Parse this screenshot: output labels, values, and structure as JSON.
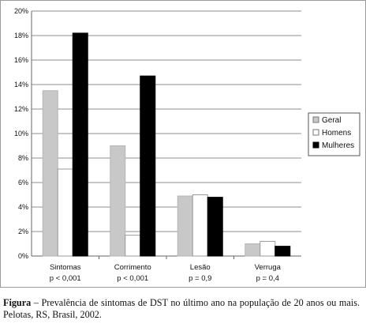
{
  "chart_data": {
    "type": "bar",
    "categories": [
      "Sintomas",
      "Corrimento",
      "Lesão",
      "Verruga"
    ],
    "subcategories": [
      "p < 0,001",
      "p < 0,001",
      "p = 0,9",
      "p = 0,4"
    ],
    "series": [
      {
        "name": "Geral",
        "values": [
          13.5,
          9.0,
          4.9,
          1.0
        ],
        "color": "#c8c8c8"
      },
      {
        "name": "Homens",
        "values": [
          7.1,
          1.7,
          5.0,
          1.2
        ],
        "color": "#ffffff"
      },
      {
        "name": "Mulheres",
        "values": [
          18.2,
          14.7,
          4.8,
          0.8
        ],
        "color": "#000000"
      }
    ],
    "y_ticks": [
      "0%",
      "2%",
      "4%",
      "6%",
      "8%",
      "10%",
      "12%",
      "14%",
      "16%",
      "18%",
      "20%"
    ],
    "ylim": [
      0,
      20
    ],
    "grid": true,
    "legend_position": "right",
    "title": "",
    "xlabel": "",
    "ylabel": ""
  },
  "caption": {
    "label": "Figura",
    "text": " – Prevalência de sintomas de DST no último ano na população de 20 anos ou mais. Pelotas, RS, Brasil, 2002."
  }
}
